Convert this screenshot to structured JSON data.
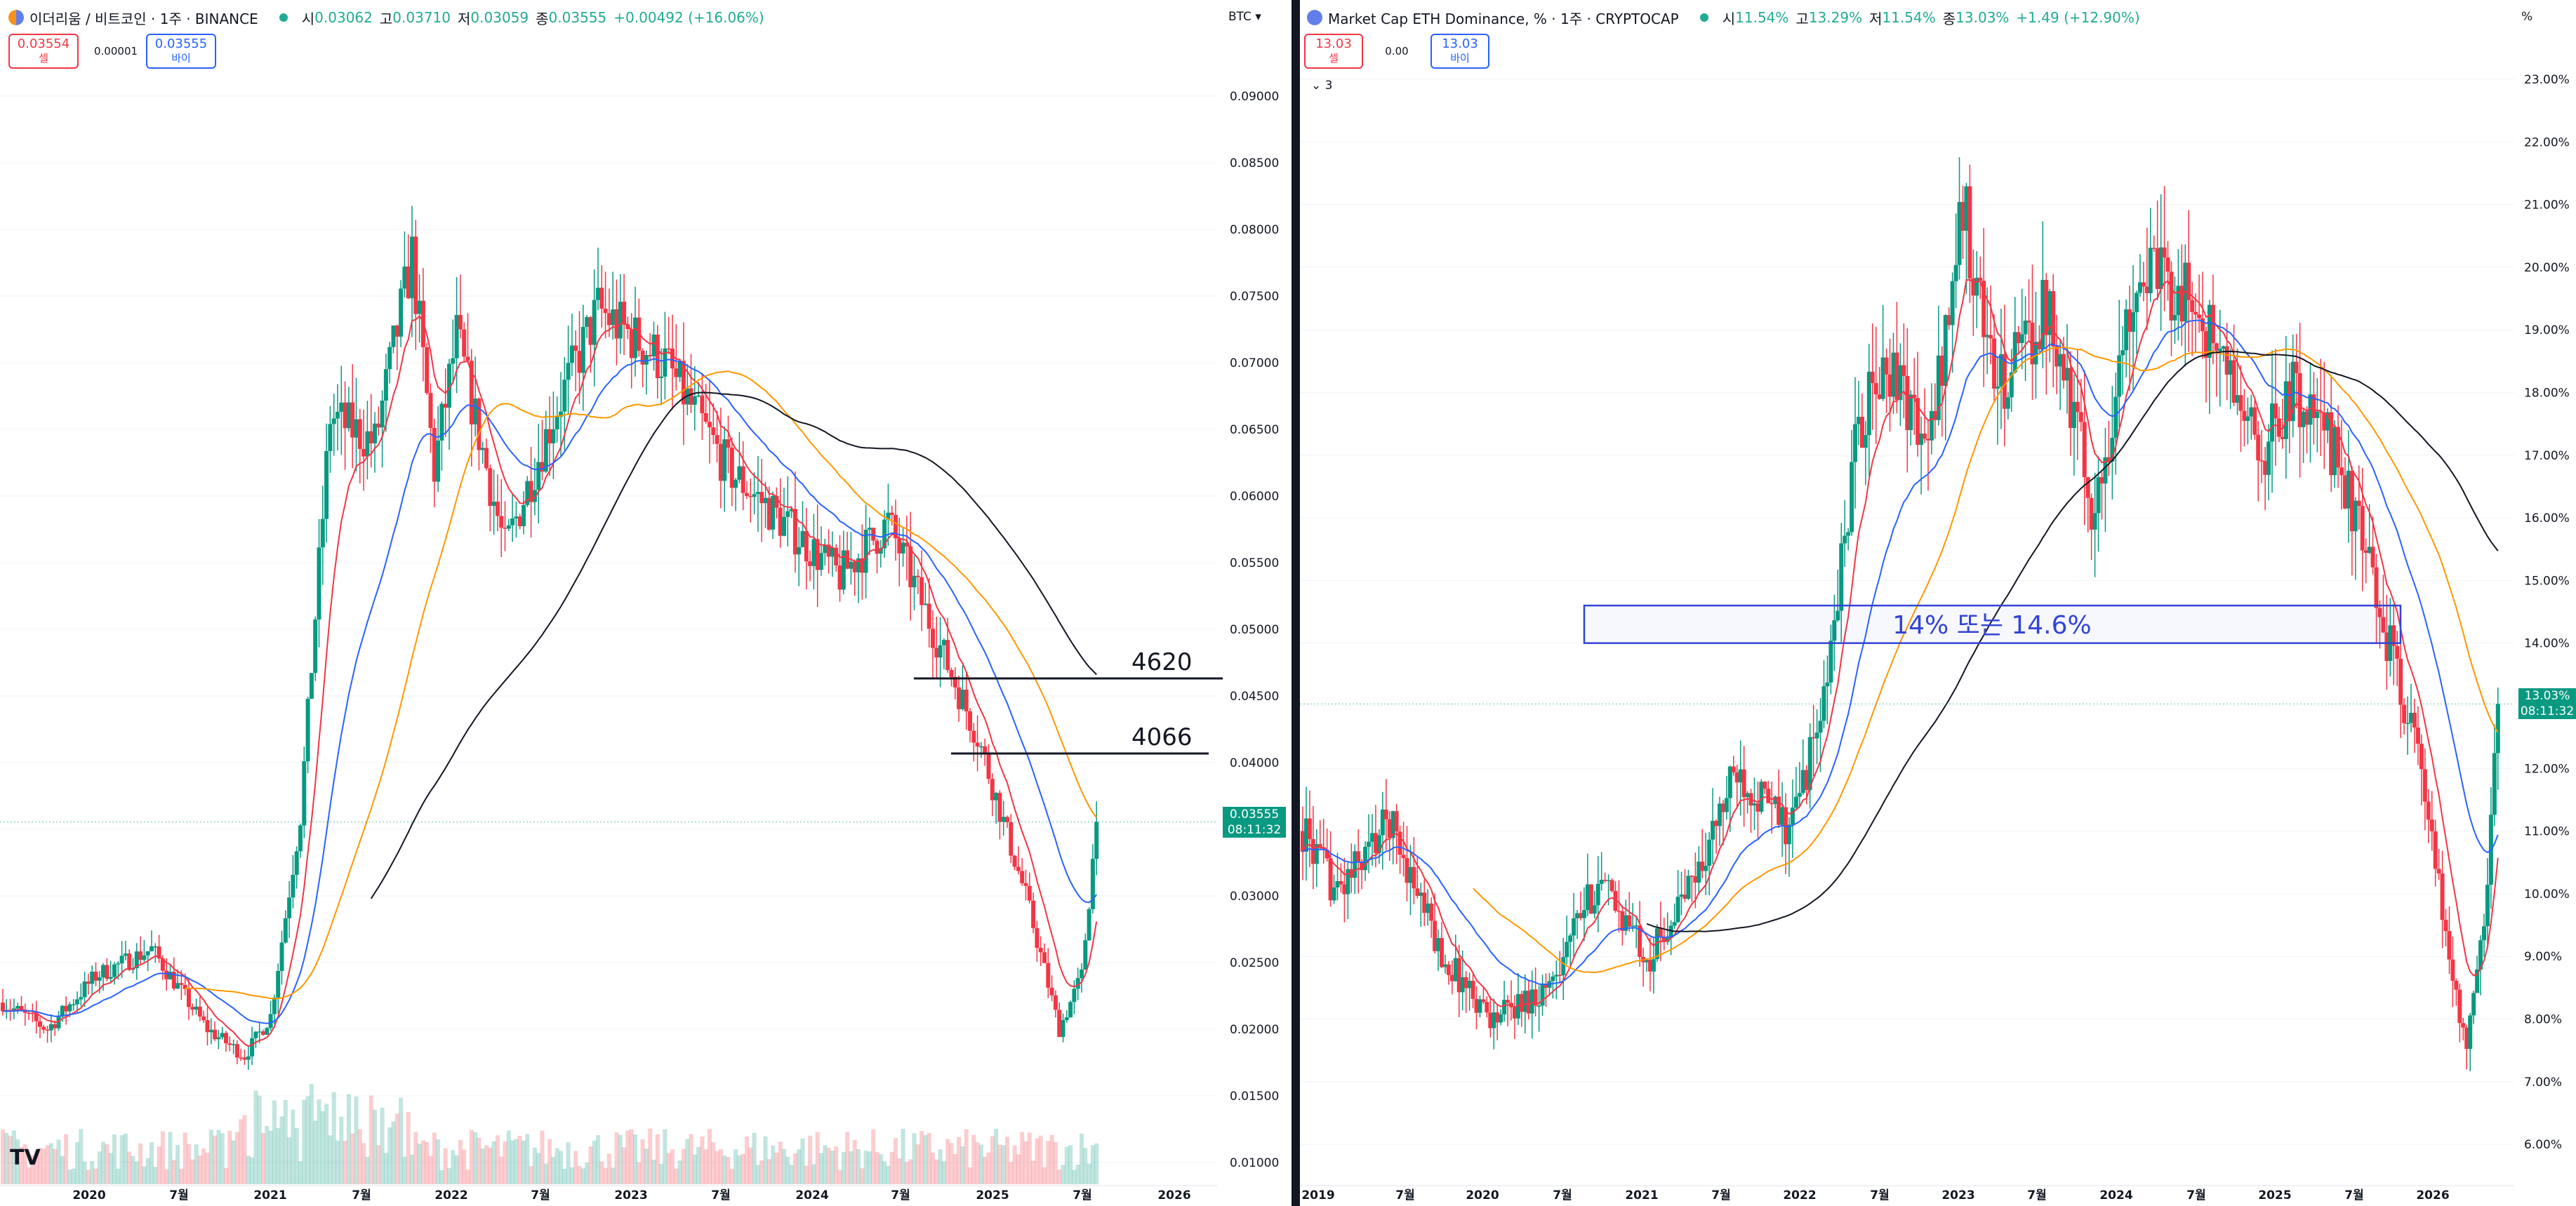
{
  "left_chart": {
    "title": "이더리움 / 비트코인 · 1주 · BINANCE",
    "ohlc": [
      {
        "label": "시",
        "value": "0.03062"
      },
      {
        "label": "고",
        "value": "0.03710"
      },
      {
        "label": "저",
        "value": "0.03059"
      },
      {
        "label": "종",
        "value": "0.03555"
      }
    ],
    "change": "+0.00492 (+16.06%)",
    "sell_price": "0.03554",
    "sell_label": "셀",
    "spread": "0.00001",
    "buy_price": "0.03555",
    "buy_label": "바이",
    "axis_unit": "BTC",
    "price_ticks": [
      "0.09000",
      "0.08500",
      "0.08000",
      "0.07500",
      "0.07000",
      "0.06500",
      "0.06000",
      "0.05500",
      "0.05000",
      "0.04500",
      "0.04000",
      "0.03500",
      "0.03000",
      "0.02500",
      "0.02000",
      "0.01500",
      "0.01000"
    ],
    "time_ticks": [
      "2020",
      "7월",
      "2021",
      "7월",
      "2022",
      "7월",
      "2023",
      "7월",
      "2024",
      "7월",
      "2025",
      "7월",
      "2026"
    ],
    "current_price": "0.03555",
    "countdown": "08:11:32",
    "annotations": [
      "4620",
      "4066"
    ],
    "logo": "TV"
  },
  "right_chart": {
    "title": "Market Cap ETH Dominance, % · 1주 · CRYPTOCAP",
    "ohlc": [
      {
        "label": "시",
        "value": "11.54%"
      },
      {
        "label": "고",
        "value": "13.29%"
      },
      {
        "label": "저",
        "value": "11.54%"
      },
      {
        "label": "종",
        "value": "13.03%"
      }
    ],
    "change": "+1.49 (+12.90%)",
    "sell_price": "13.03",
    "sell_label": "셀",
    "spread": "0.00",
    "buy_price": "13.03",
    "buy_label": "바이",
    "indicator_toggle": "3",
    "axis_unit": "%",
    "price_ticks": [
      "23.00%",
      "22.00%",
      "21.00%",
      "20.00%",
      "19.00%",
      "18.00%",
      "17.00%",
      "16.00%",
      "15.00%",
      "14.00%",
      "13.00%",
      "12.00%",
      "11.00%",
      "10.00%",
      "9.00%",
      "8.00%",
      "7.00%",
      "6.00%"
    ],
    "time_ticks": [
      "2019",
      "7월",
      "2020",
      "7월",
      "2021",
      "7월",
      "2022",
      "7월",
      "2023",
      "7월",
      "2024",
      "7월",
      "2025",
      "7월",
      "2026"
    ],
    "current_price": "13.03%",
    "countdown": "08:11:32",
    "zone_label": "14% 또는 14.6%"
  },
  "colors": {
    "up": "#089981",
    "down": "#f23645",
    "ma_red": "#f23645",
    "ma_blue": "#2962ff",
    "ma_orange": "#ff9800",
    "ma_black": "#131722",
    "zone": "#3244d4"
  }
}
